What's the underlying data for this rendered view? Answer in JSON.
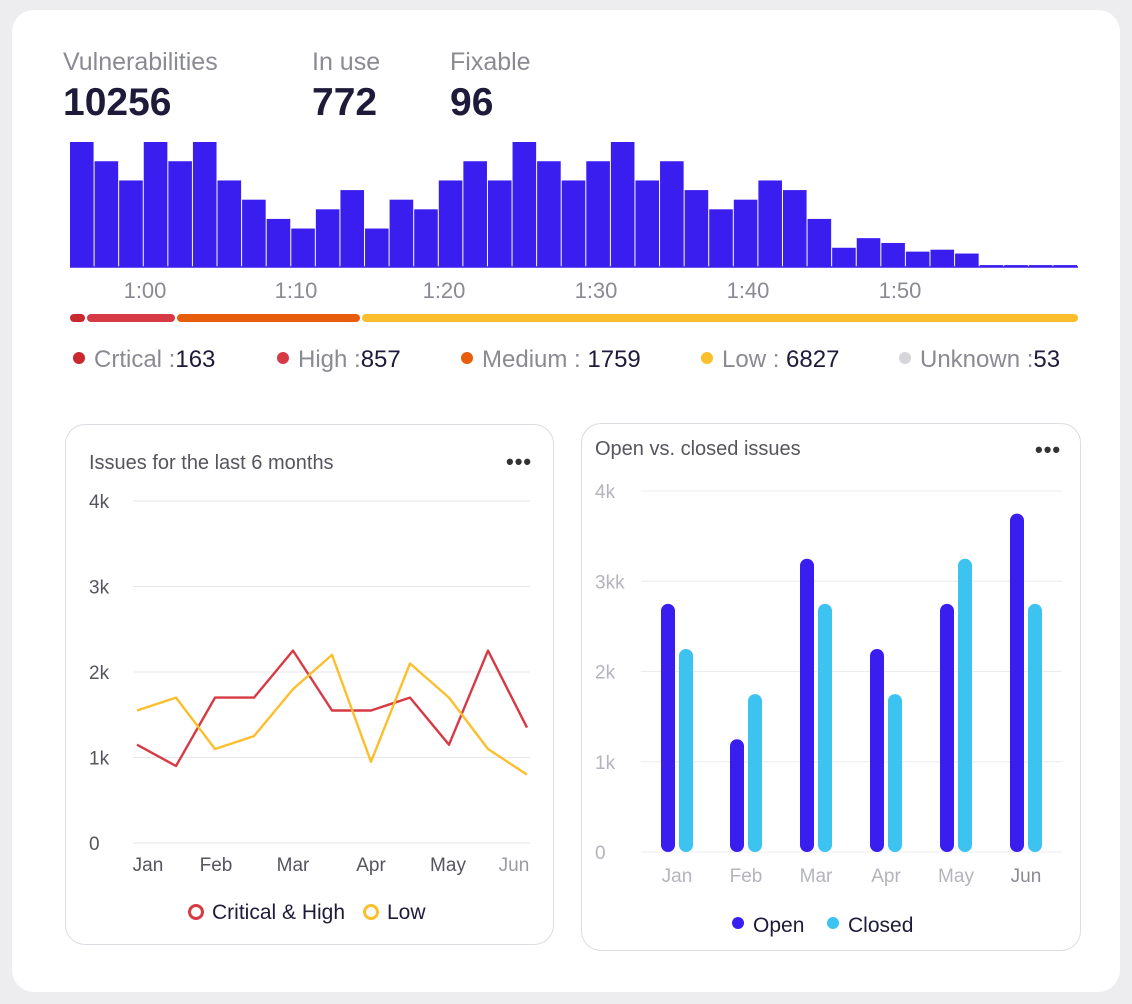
{
  "stats": [
    {
      "label": "Vulnerabilities",
      "value": "10256"
    },
    {
      "label": "In use",
      "value": "772"
    },
    {
      "label": "Fixable",
      "value": "96"
    }
  ],
  "severity": [
    {
      "label": "Crtical :",
      "value": "163",
      "count": 163,
      "color": "#c8282e"
    },
    {
      "label": "High :",
      "value": "857",
      "count": 857,
      "color": "#d63a45"
    },
    {
      "label": "Medium : ",
      "value": "1759",
      "count": 1759,
      "color": "#e85d0c"
    },
    {
      "label": "Low : ",
      "value": "6827",
      "count": 6827,
      "color": "#fbbf2e"
    },
    {
      "label": "Unknown :",
      "value": "53",
      "count": 53,
      "color": "#d6d6da"
    }
  ],
  "chart_data": [
    {
      "type": "bar",
      "x_ticks": [
        "1:00",
        "1:10",
        "1:20",
        "1:30",
        "1:40",
        "1:50"
      ],
      "values": [
        13,
        11,
        9,
        13,
        11,
        13,
        9,
        7,
        5,
        4,
        6,
        8,
        4,
        7,
        6,
        9,
        11,
        9,
        13,
        11,
        9,
        11,
        13,
        9,
        11,
        8,
        6,
        7,
        9,
        8,
        5,
        2,
        3,
        2.5,
        1.6,
        1.8,
        1.4,
        0.2,
        0.2,
        0.2,
        0.2
      ],
      "color": "#3a1ef0"
    },
    {
      "type": "line",
      "title": "Issues for the last 6 months",
      "x": [
        "Jan",
        "",
        "Feb",
        "",
        "Mar",
        "",
        "Apr",
        "",
        "May",
        "",
        "Jun"
      ],
      "tick_labels_x": [
        "Jan",
        "Feb",
        "Mar",
        "Apr",
        "May",
        "Jun"
      ],
      "y_ticks": [
        "4k",
        "3k",
        "2k",
        "1k",
        "0"
      ],
      "ylim": [
        0,
        4000
      ],
      "grid": true,
      "series": [
        {
          "name": "Critical & High",
          "color": "#d63a45",
          "values": [
            1150,
            900,
            1700,
            1700,
            2250,
            1550,
            1550,
            1700,
            1150,
            2250,
            1350
          ]
        },
        {
          "name": "Low",
          "color": "#fbbf2e",
          "values": [
            1550,
            1700,
            1100,
            1250,
            1800,
            2200,
            950,
            2100,
            1700,
            1100,
            800
          ]
        }
      ],
      "legend": "bottom"
    },
    {
      "type": "bar",
      "title": "Open vs. closed issues",
      "categories": [
        "Jan",
        "Feb",
        "Mar",
        "Apr",
        "May",
        "Jun"
      ],
      "y_ticks": [
        "4k",
        "3kk",
        "2k",
        "1k",
        "0"
      ],
      "ylim": [
        0,
        4000
      ],
      "grid": true,
      "series": [
        {
          "name": "Open",
          "color": "#3a1ef0",
          "values": [
            2750,
            1250,
            3250,
            2250,
            2750,
            3750
          ]
        },
        {
          "name": "Closed",
          "color": "#3cc3f0",
          "values": [
            2250,
            1750,
            2750,
            1750,
            3250,
            2750
          ]
        }
      ],
      "legend": "bottom"
    }
  ],
  "panels": {
    "menu_glyph": "•••"
  }
}
